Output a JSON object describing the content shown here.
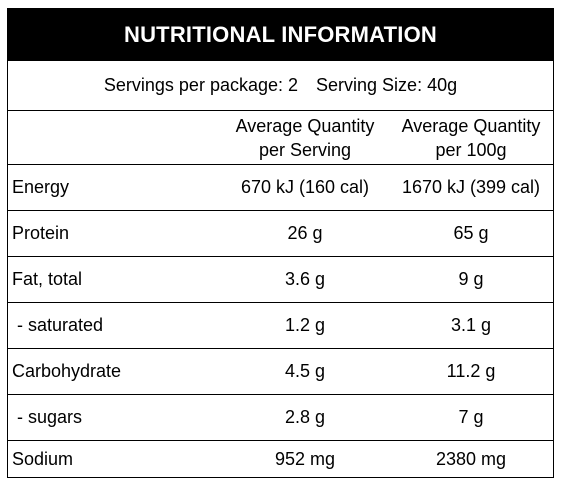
{
  "title": "NUTRITIONAL INFORMATION",
  "servings": {
    "per_package": "Servings per package: 2",
    "serving_size": "Serving Size: 40g"
  },
  "columns": {
    "per_serving_line1": "Average Quantity",
    "per_serving_line2": "per Serving",
    "per_100g_line1": "Average Quantity",
    "per_100g_line2": "per 100g"
  },
  "rows": [
    {
      "label": "Energy",
      "per_serving": "670 kJ (160 cal)",
      "per_100g": "1670 kJ (399 cal)"
    },
    {
      "label": "Protein",
      "per_serving": "26 g",
      "per_100g": "65 g"
    },
    {
      "label": "Fat, total",
      "per_serving": "3.6 g",
      "per_100g": "9 g"
    },
    {
      "label": " - saturated",
      "per_serving": "1.2 g",
      "per_100g": "3.1 g"
    },
    {
      "label": "Carbohydrate",
      "per_serving": "4.5 g",
      "per_100g": "11.2 g"
    },
    {
      "label": " - sugars",
      "per_serving": "2.8 g",
      "per_100g": "7 g"
    },
    {
      "label": "Sodium",
      "per_serving": "952 mg",
      "per_100g": "2380 mg"
    }
  ]
}
